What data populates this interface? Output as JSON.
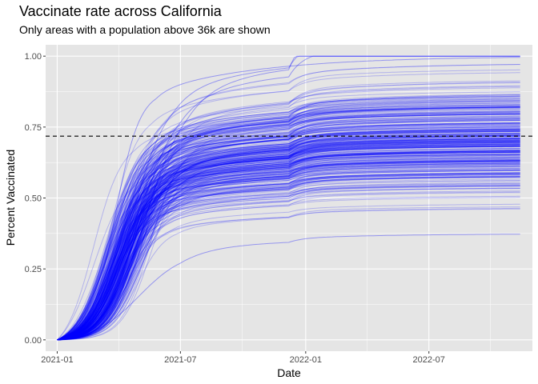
{
  "chart_data": {
    "type": "line",
    "title": "Vaccinate rate across California",
    "subtitle": "Only areas with a population above 36k are shown",
    "xlabel": "Date",
    "ylabel": "Percent Vaccinated",
    "x_range": [
      "2020-12-15",
      "2022-11-30"
    ],
    "x_data_start": "2021-01-01",
    "x_data_end": "2022-11-15",
    "x_ticks": [
      "2021-01",
      "2021-07",
      "2022-01",
      "2022-07"
    ],
    "x_tick_dates": [
      "2021-01-01",
      "2021-07-01",
      "2022-01-01",
      "2022-07-01"
    ],
    "ylim": [
      -0.04,
      1.04
    ],
    "y_ticks": [
      0.0,
      0.25,
      0.5,
      0.75,
      1.0
    ],
    "y_tick_labels": [
      "0.00",
      "0.25",
      "0.50",
      "0.75",
      "1.00"
    ],
    "reference_line": {
      "y": 0.718,
      "style": "dashed",
      "color": "#000000"
    },
    "series_color": "#0000ff",
    "background": "#e5e5e5",
    "grid": true,
    "legend": "none",
    "series_count": 320,
    "final_value_range": [
      0.38,
      1.0
    ],
    "distribution_notes": "Most areas rise steeply from Jan–Jun 2021 then plateau between 0.55 and 0.85; a few outliers reach 1.00 by mid 2021; lowest series ends near 0.38."
  }
}
